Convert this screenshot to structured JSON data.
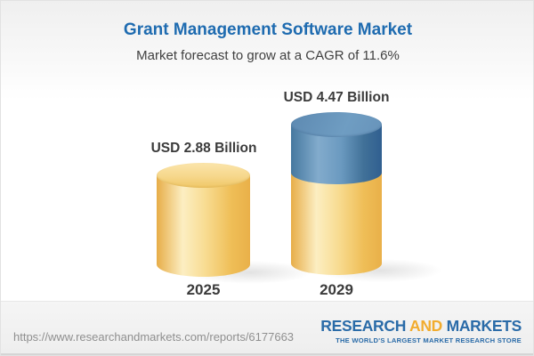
{
  "header": {
    "title": "Grant Management Software Market",
    "subtitle": "Market forecast to grow at a CAGR of 11.6%"
  },
  "chart_data": {
    "type": "bar",
    "style": "3d-cylinder",
    "categories": [
      "2025",
      "2029"
    ],
    "values": [
      2.88,
      4.47
    ],
    "value_labels": [
      "USD 2.88 Billion",
      "USD 4.47 Billion"
    ],
    "unit": "USD Billion",
    "cagr_percent": 11.6,
    "legend_position": "none",
    "grid": false,
    "notes": "2029 cylinder is yellow up to the 2025 level (2.88) with a blue segment on top representing growth to 4.47",
    "colors": {
      "bar_yellow": "#f0c05e",
      "growth_blue": "#5b8ab5",
      "title_blue": "#1e6bb0",
      "label_dark": "#3b3b3b"
    }
  },
  "footer": {
    "url": "https://www.researchandmarkets.com/reports/6177663",
    "logo": {
      "word1": "RESEARCH",
      "word2": "AND",
      "word3": "MARKETS",
      "tagline": "THE WORLD'S LARGEST MARKET RESEARCH STORE",
      "blue": "#2a6ba8",
      "orange": "#f2ac2e"
    }
  }
}
